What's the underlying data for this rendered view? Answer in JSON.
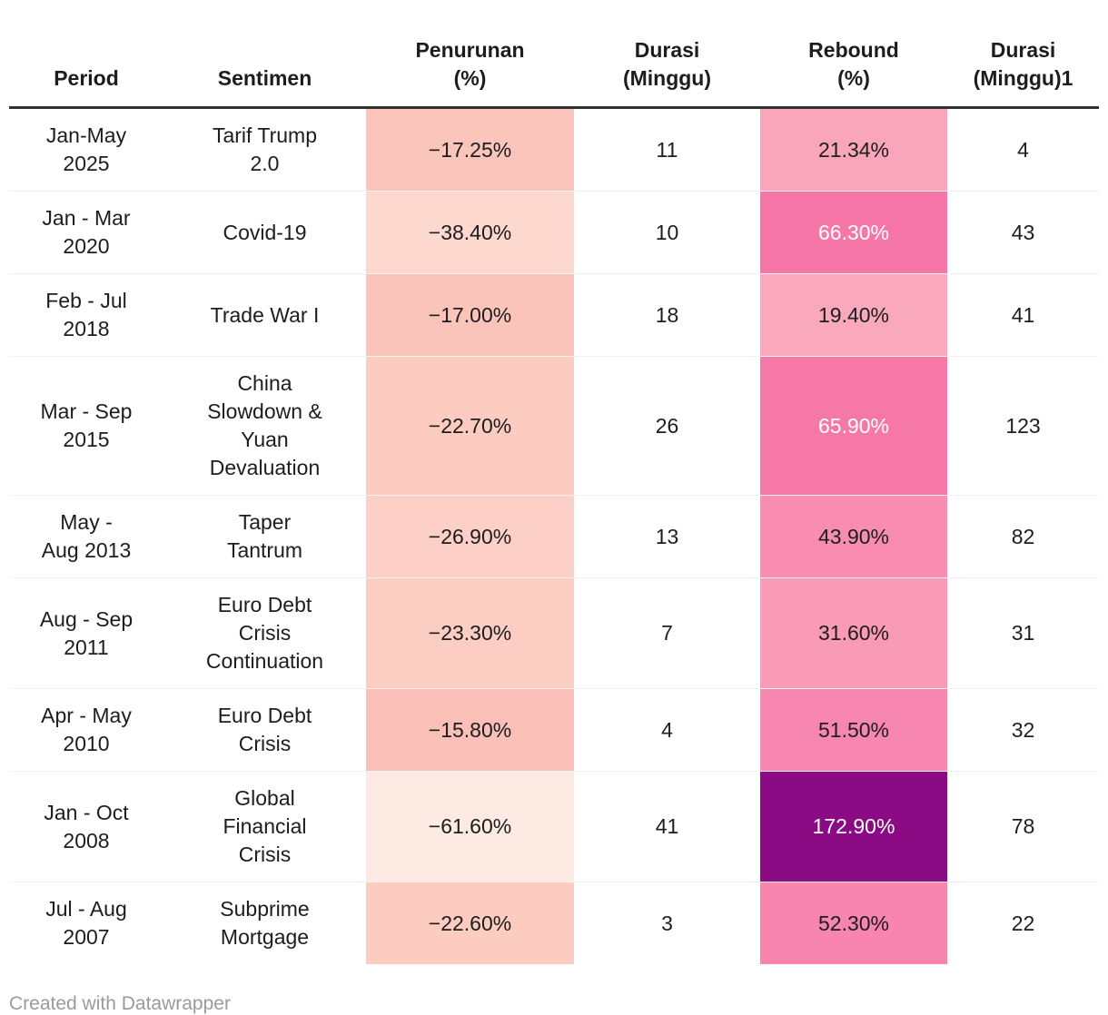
{
  "header": {
    "period": "Period",
    "sentimen": "Sentimen",
    "penurunan": "Penurunan\n(%)",
    "durasi": "Durasi\n(Minggu)",
    "rebound": "Rebound\n(%)",
    "durasi2": "Durasi\n(Minggu)1"
  },
  "rows": [
    {
      "period": "Jan-May\n2025",
      "sentimen": "Tarif Trump\n2.0",
      "decline": "−17.25%",
      "decline_bg": "#fbc5bc",
      "decline_text": "#1d1d1d",
      "duration": "11",
      "rebound": "21.34%",
      "rebound_bg": "#faa6ba",
      "rebound_text": "#1d1d1d",
      "duration2": "4"
    },
    {
      "period": "Jan - Mar\n2020",
      "sentimen": "Covid-19",
      "decline": "−38.40%",
      "decline_bg": "#fdd8ce",
      "decline_text": "#1d1d1d",
      "duration": "10",
      "rebound": "66.30%",
      "rebound_bg": "#f677a7",
      "rebound_text": "#ffffff",
      "duration2": "43"
    },
    {
      "period": "Feb - Jul\n2018",
      "sentimen": "Trade War I",
      "decline": "−17.00%",
      "decline_bg": "#fbc4bb",
      "decline_text": "#1d1d1d",
      "duration": "18",
      "rebound": "19.40%",
      "rebound_bg": "#faa9bc",
      "rebound_text": "#1d1d1d",
      "duration2": "41"
    },
    {
      "period": "Mar - Sep\n2015",
      "sentimen": "China\nSlowdown &\nYuan\nDevaluation",
      "decline": "−22.70%",
      "decline_bg": "#fcccc1",
      "decline_text": "#1d1d1d",
      "duration": "26",
      "rebound": "65.90%",
      "rebound_bg": "#f678a7",
      "rebound_text": "#ffffff",
      "duration2": "123"
    },
    {
      "period": "May -\nAug 2013",
      "sentimen": "Taper\nTantrum",
      "decline": "−26.90%",
      "decline_bg": "#fcd0c6",
      "decline_text": "#1d1d1d",
      "duration": "13",
      "rebound": "43.90%",
      "rebound_bg": "#f88db1",
      "rebound_text": "#1d1d1d",
      "duration2": "82"
    },
    {
      "period": "Aug - Sep\n2011",
      "sentimen": "Euro Debt\nCrisis\nContinuation",
      "decline": "−23.30%",
      "decline_bg": "#fccdc3",
      "decline_text": "#1d1d1d",
      "duration": "7",
      "rebound": "31.60%",
      "rebound_bg": "#f99ab6",
      "rebound_text": "#1d1d1d",
      "duration2": "31"
    },
    {
      "period": "Apr - May\n2010",
      "sentimen": "Euro Debt\nCrisis",
      "decline": "−15.80%",
      "decline_bg": "#fabfb7",
      "decline_text": "#1d1d1d",
      "duration": "4",
      "rebound": "51.50%",
      "rebound_bg": "#f787ae",
      "rebound_text": "#1d1d1d",
      "duration2": "32"
    },
    {
      "period": "Jan - Oct\n2008",
      "sentimen": "Global\nFinancial\nCrisis",
      "decline": "−61.60%",
      "decline_bg": "#fdeae2",
      "decline_text": "#1d1d1d",
      "duration": "41",
      "rebound": "172.90%",
      "rebound_bg": "#8a0b84",
      "rebound_text": "#ffffff",
      "duration2": "78"
    },
    {
      "period": "Jul - Aug\n2007",
      "sentimen": "Subprime\nMortgage",
      "decline": "−22.60%",
      "decline_bg": "#fcccc1",
      "decline_text": "#1d1d1d",
      "duration": "3",
      "rebound": "52.30%",
      "rebound_bg": "#f785ad",
      "rebound_text": "#1d1d1d",
      "duration2": "22"
    }
  ],
  "footer": {
    "credit": "Created with Datawrapper"
  },
  "chart_data": {
    "type": "table",
    "title": "",
    "columns": [
      "Period",
      "Sentimen",
      "Penurunan (%)",
      "Durasi (Minggu)",
      "Rebound (%)",
      "Durasi (Minggu)1"
    ],
    "rows": [
      [
        "Jan-May 2025",
        "Tarif Trump 2.0",
        -17.25,
        11,
        21.34,
        4
      ],
      [
        "Jan - Mar 2020",
        "Covid-19",
        -38.4,
        10,
        66.3,
        43
      ],
      [
        "Feb - Jul 2018",
        "Trade War I",
        -17.0,
        18,
        19.4,
        41
      ],
      [
        "Mar - Sep 2015",
        "China Slowdown & Yuan Devaluation",
        -22.7,
        26,
        65.9,
        123
      ],
      [
        "May - Aug 2013",
        "Taper Tantrum",
        -26.9,
        13,
        43.9,
        82
      ],
      [
        "Aug - Sep 2011",
        "Euro Debt Crisis Continuation",
        -23.3,
        7,
        31.6,
        31
      ],
      [
        "Apr - May 2010",
        "Euro Debt Crisis",
        -15.8,
        4,
        51.5,
        32
      ],
      [
        "Jan - Oct 2008",
        "Global Financial Crisis",
        -61.6,
        41,
        172.9,
        78
      ],
      [
        "Jul - Aug 2007",
        "Subprime Mortgage",
        -22.6,
        3,
        52.3,
        22
      ]
    ],
    "heatmap_columns": {
      "decline_scale": "light salmon (small decline) to near-white (large decline)",
      "rebound_scale": "light pink (small rebound) to deep purple (large rebound)",
      "rebound_max_color": "#8a0b84"
    },
    "legend_position": "none",
    "grid": "horizontal row separators"
  }
}
